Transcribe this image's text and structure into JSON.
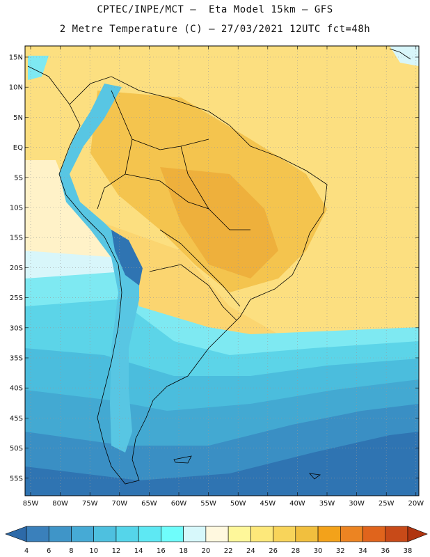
{
  "header": {
    "line1": "CPTEC/INPE/MCT –  Eta Model 15km – GFS",
    "line2": "2 Metre Temperature (C) – 27/03/2021 12UTC fct=48h"
  },
  "map": {
    "lat_labels": [
      "15N",
      "10N",
      "5N",
      "EQ",
      "5S",
      "10S",
      "15S",
      "20S",
      "25S",
      "30S",
      "35S",
      "40S",
      "45S",
      "50S",
      "55S"
    ],
    "lon_labels": [
      "85W",
      "80W",
      "75W",
      "70W",
      "65W",
      "60W",
      "55W",
      "50W",
      "45W",
      "40W",
      "35W",
      "30W",
      "25W",
      "20W"
    ]
  },
  "colorbar": {
    "labels": [
      "4",
      "6",
      "8",
      "10",
      "12",
      "14",
      "16",
      "18",
      "20",
      "22",
      "24",
      "26",
      "28",
      "30",
      "32",
      "34",
      "36",
      "38"
    ],
    "colors": [
      "#2d6aa8",
      "#3a80bb",
      "#3f95c8",
      "#46aad5",
      "#4ec0df",
      "#55d5ea",
      "#5ee8f3",
      "#6ffdfb",
      "#d7f8fb",
      "#fff8df",
      "#fef79a",
      "#fde87a",
      "#f8d45a",
      "#f1bf3e",
      "#f3a21a",
      "#ec8422",
      "#e0641c",
      "#c84a18",
      "#b03510"
    ]
  }
}
